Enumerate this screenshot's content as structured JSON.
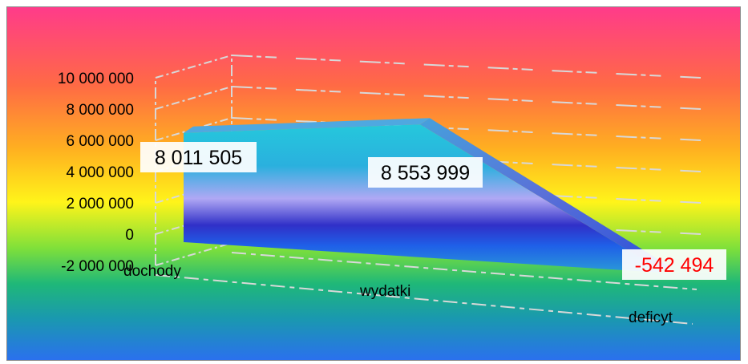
{
  "chart_data": {
    "type": "area",
    "three_d": true,
    "categories": [
      "dochody",
      "wydatki",
      "deficyt"
    ],
    "values": [
      8011505,
      8553999,
      -542494
    ],
    "data_labels": [
      "8 011 505",
      "8 553 999",
      "-542 494"
    ],
    "data_label_colors": [
      "#000000",
      "#000000",
      "#ff0000"
    ],
    "y_ticks": [
      "-2 000 000",
      "0",
      "2 000 000",
      "4 000 000",
      "6 000 000",
      "8 000 000",
      "10 000 000"
    ],
    "ylim": [
      -2000000,
      10000000
    ],
    "grid": true,
    "legend": "none",
    "colors": {
      "background_gradient": [
        "#ff3b8a",
        "#ff7a3a",
        "#ffd21e",
        "#fff21a",
        "#6fdc3a",
        "#1fb57a",
        "#1a8fbf",
        "#2a6fe8"
      ],
      "series_gradient": [
        "#2fc6e0",
        "#2aa6d8",
        "#a8a0f0",
        "#2a2ad0",
        "#1f6fe8",
        "#2a9ad0"
      ],
      "series_side": "#3b7fd8"
    }
  }
}
